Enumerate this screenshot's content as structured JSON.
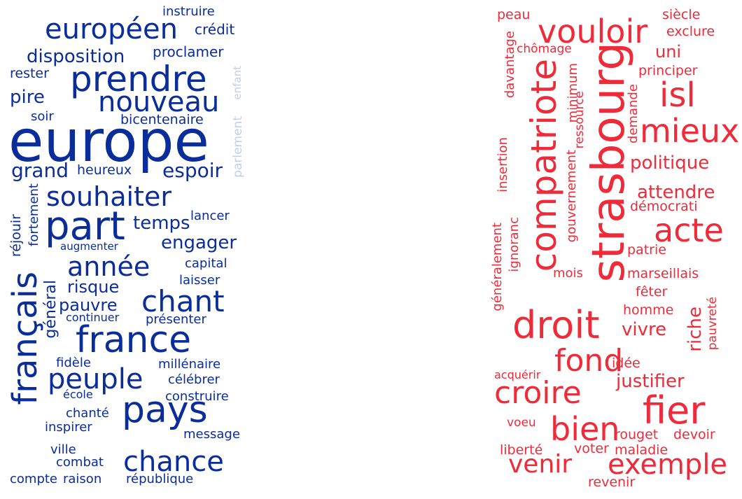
{
  "left_cloud": {
    "color": "#0a2d9a",
    "faint_color": "#c3cdf0",
    "words": [
      "europe",
      "prendre",
      "européen",
      "nouveau",
      "français",
      "part",
      "souhaiter",
      "france",
      "pays",
      "peuple",
      "chant",
      "chance",
      "année",
      "disposition",
      "grand",
      "espoir",
      "temps",
      "engager",
      "pire",
      "risque",
      "pauvre",
      "instruire",
      "crédit",
      "proclamer",
      "rester",
      "soir",
      "bicentenaire",
      "heureux",
      "réjouir",
      "fortement",
      "augmenter",
      "lancer",
      "capital",
      "laisser",
      "général",
      "continuer",
      "présenter",
      "fidèle",
      "millénaire",
      "célébrer",
      "école",
      "construire",
      "chanté",
      "inspirer",
      "message",
      "ville",
      "combat",
      "compte",
      "raison",
      "république",
      "parlement",
      "enfant"
    ]
  },
  "right_cloud": {
    "color": "#ef2b3a",
    "words": [
      "strasbourg",
      "compatriote",
      "droit",
      "vouloir",
      "fier",
      "isl",
      "mieux",
      "acte",
      "croire",
      "fond",
      "bien",
      "venir",
      "exemple",
      "politique",
      "attendre",
      "justifier",
      "uni",
      "peau",
      "siècle",
      "exclure",
      "chômage",
      "principer",
      "davantage",
      "minimum",
      "demande",
      "ressource",
      "démocrati",
      "insertion",
      "gouvernement",
      "ignoranc",
      "généralement",
      "patrie",
      "mois",
      "marseillais",
      "fêter",
      "homme",
      "vivre",
      "riche",
      "pauvreté",
      "idée",
      "acquérir",
      "voeu",
      "rouget",
      "devoir",
      "liberté",
      "voter",
      "maladie",
      "revenir"
    ]
  }
}
